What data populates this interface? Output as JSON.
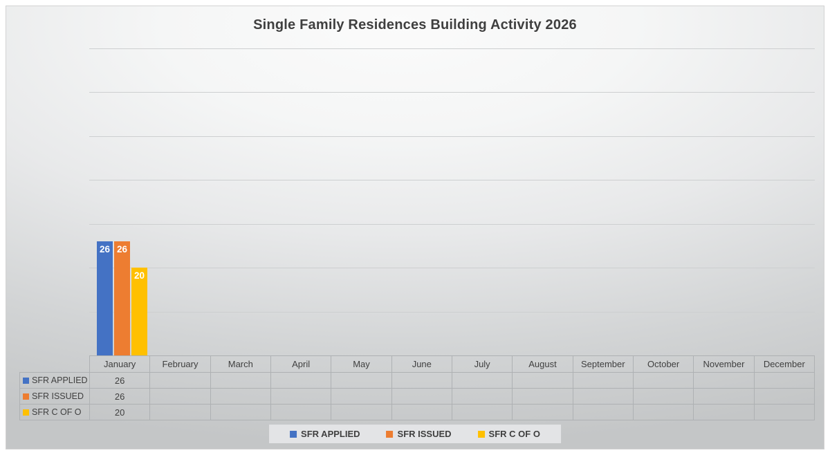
{
  "chart_data": {
    "type": "bar",
    "title": "Single Family Residences Building Activity 2026",
    "categories": [
      "January",
      "February",
      "March",
      "April",
      "May",
      "June",
      "July",
      "August",
      "September",
      "October",
      "November",
      "December"
    ],
    "series": [
      {
        "name": "SFR APPLIED",
        "color": "#4472C4",
        "values": [
          26,
          null,
          null,
          null,
          null,
          null,
          null,
          null,
          null,
          null,
          null,
          null
        ]
      },
      {
        "name": "SFR ISSUED",
        "color": "#ED7D31",
        "values": [
          26,
          null,
          null,
          null,
          null,
          null,
          null,
          null,
          null,
          null,
          null,
          null
        ]
      },
      {
        "name": "SFR C OF O",
        "color": "#FFC000",
        "values": [
          20,
          null,
          null,
          null,
          null,
          null,
          null,
          null,
          null,
          null,
          null,
          null
        ]
      }
    ],
    "ylim": [
      0,
      70
    ],
    "gridline_step": 10,
    "grid": true,
    "y_axis_labels_visible": false,
    "data_labels": "inside-end-white-bold",
    "legend_position": "bottom",
    "data_table_shown": true
  },
  "colors": {
    "title_text": "#3f3f3f",
    "gridline": "#cdcfd0",
    "table_border": "#aeb1b3",
    "legend_background": "#e3e4e6",
    "background_edge": "#c4c6c7",
    "background_center": "#fbfbfb"
  }
}
